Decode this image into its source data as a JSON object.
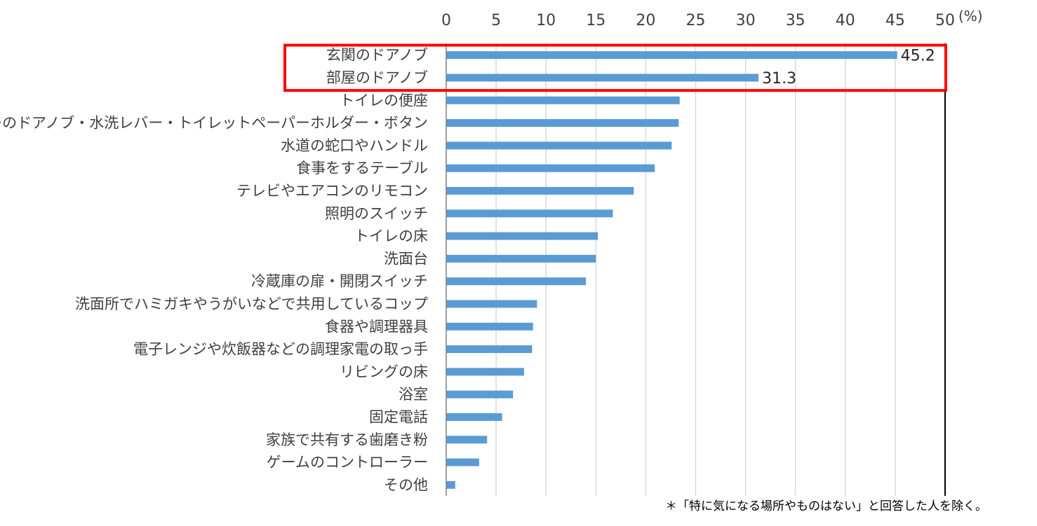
{
  "chart_data": {
    "type": "bar",
    "orientation": "horizontal",
    "categories": [
      "玄関のドアノブ",
      "部屋のドアノブ",
      "トイレの便座",
      "トイレのドアノブ・水洗レバー・トイレットペーパーホルダー・ボタン",
      "水道の蛇口やハンドル",
      "食事をするテーブル",
      "テレビやエアコンのリモコン",
      "照明のスイッチ",
      "トイレの床",
      "洗面台",
      "冷蔵庫の扉・開閉スイッチ",
      "洗面所でハミガキやうがいなどで共用しているコップ",
      "食器や調理器具",
      "電子レンジや炊飯器などの調理家電の取っ手",
      "リビングの床",
      "浴室",
      "固定電話",
      "家族で共有する歯磨き粉",
      "ゲームのコントローラー",
      "その他"
    ],
    "values": [
      45.2,
      31.3,
      23.4,
      23.3,
      22.6,
      20.9,
      18.8,
      16.7,
      15.2,
      15.0,
      14.0,
      9.1,
      8.7,
      8.6,
      7.8,
      6.7,
      5.6,
      4.1,
      3.3,
      0.9
    ],
    "data_labels": [
      {
        "index": 0,
        "text": "45.2"
      },
      {
        "index": 1,
        "text": "31.3"
      }
    ],
    "highlighted_categories": [
      0,
      1
    ],
    "xlim": [
      0,
      50
    ],
    "x_ticks": [
      "0",
      "5",
      "10",
      "15",
      "20",
      "25",
      "30",
      "35",
      "40",
      "45",
      "50"
    ],
    "unit_label": "(%)",
    "footnote": "＊「特に気になる場所やものはない」と回答した人を除く。",
    "grid": "vertical",
    "axis_position": "top",
    "colors": {
      "bar": "#5B9BD5",
      "highlight_box": "#FF0000",
      "gridline": "#D9D9D9",
      "axis": "#000000",
      "text": "#404040"
    }
  }
}
